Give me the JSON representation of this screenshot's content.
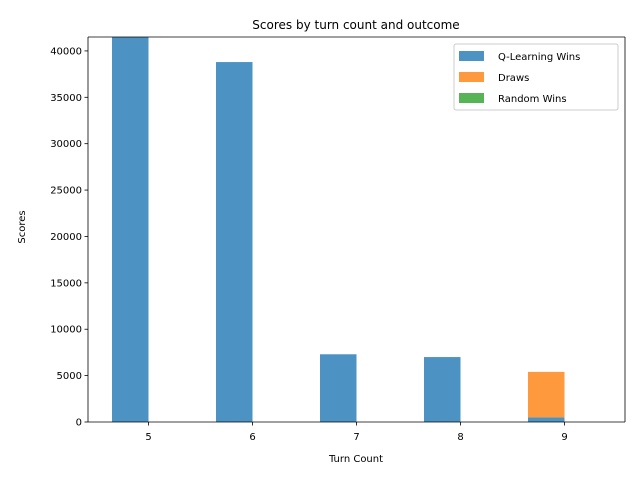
{
  "chart_data": {
    "type": "bar",
    "stacked": true,
    "title": "Scores by turn count and outcome",
    "xlabel": "Turn Count",
    "ylabel": "Scores",
    "categories": [
      "5",
      "6",
      "7",
      "8",
      "9"
    ],
    "ylim": [
      0,
      41500
    ],
    "yticks": [
      0,
      5000,
      10000,
      15000,
      20000,
      25000,
      30000,
      35000,
      40000
    ],
    "series": [
      {
        "name": "Q-Learning Wins",
        "color": "#1f77b4",
        "values": [
          41500,
          38800,
          7300,
          7000,
          500
        ]
      },
      {
        "name": "Draws",
        "color": "#ff7f0e",
        "values": [
          0,
          0,
          0,
          0,
          4900
        ]
      },
      {
        "name": "Random Wins",
        "color": "#2ca02c",
        "values": [
          0,
          0,
          0,
          0,
          0
        ]
      }
    ],
    "legend_position": "top-right",
    "grid": false
  }
}
